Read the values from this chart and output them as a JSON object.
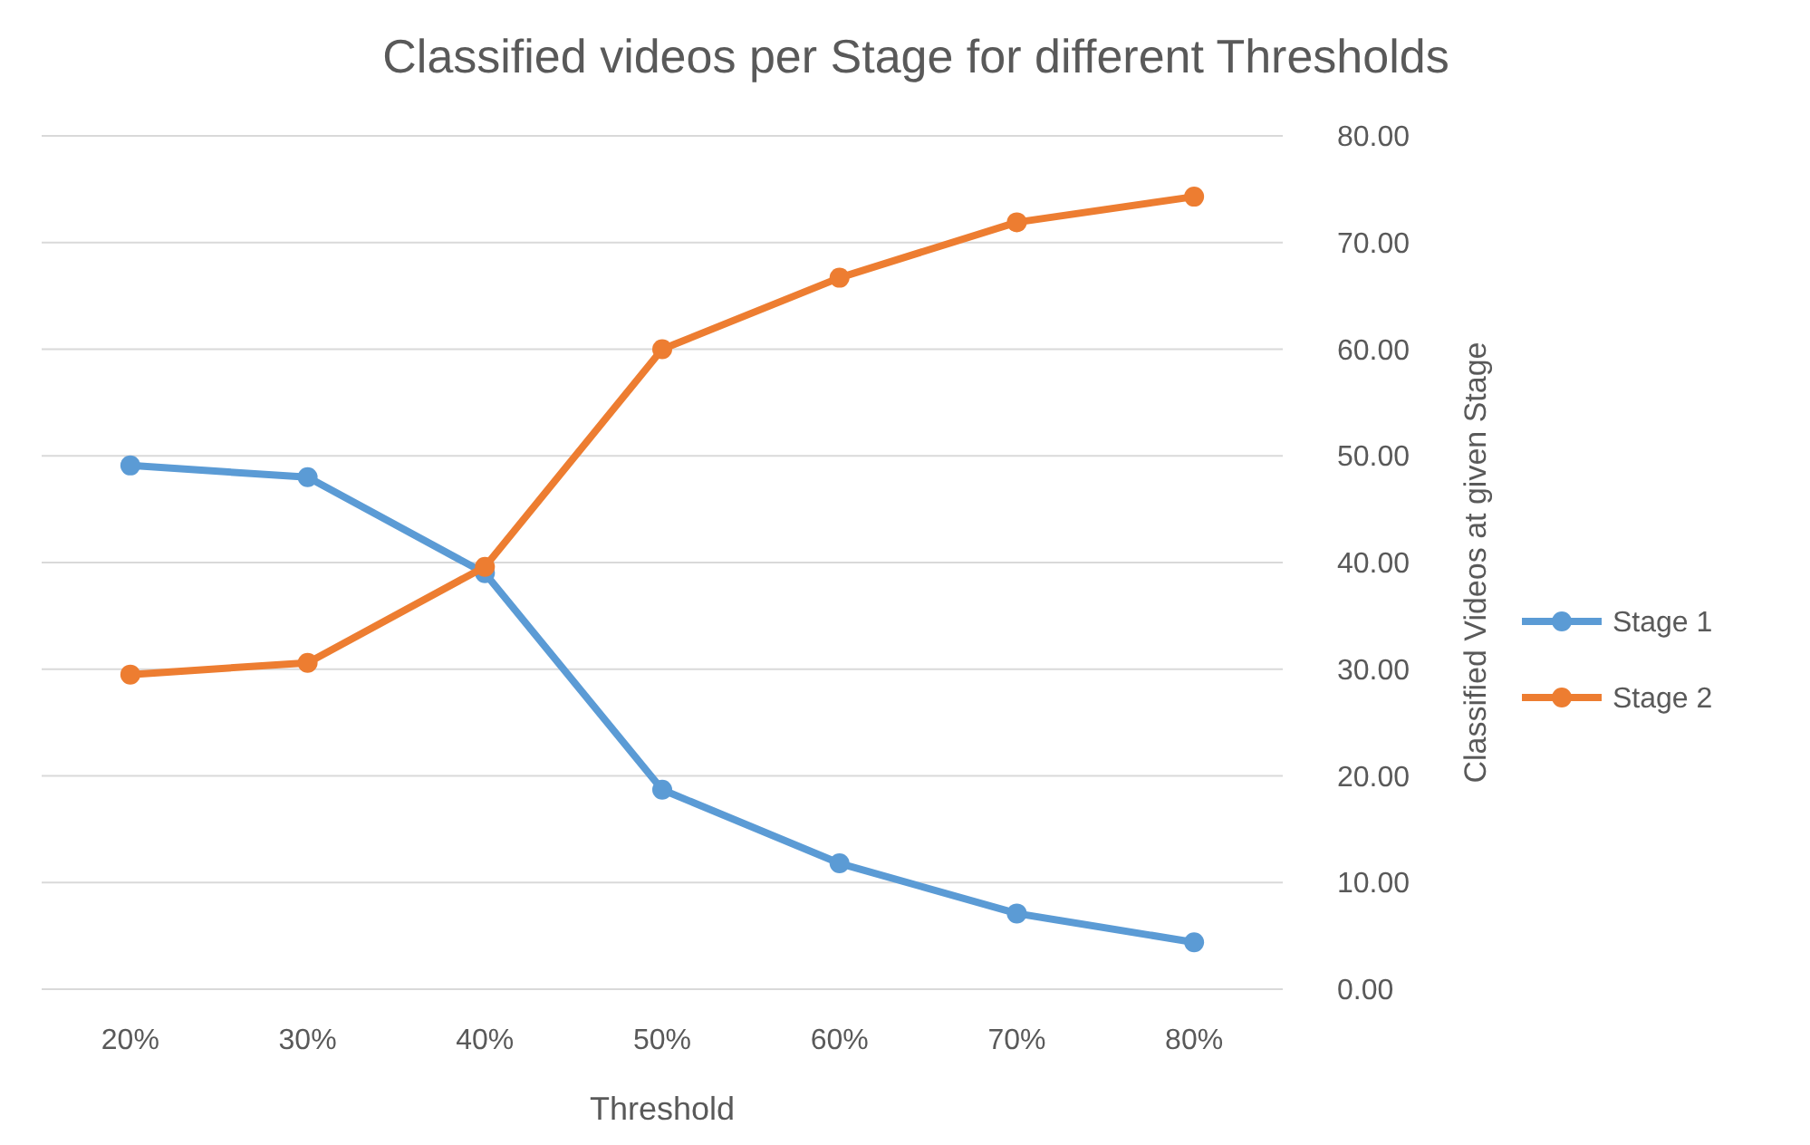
{
  "chart_data": {
    "type": "line",
    "title": "Classified videos per Stage for different Thresholds",
    "xlabel": "Threshold",
    "y2label": "Classified Videos at given Stage",
    "categories": [
      "20%",
      "30%",
      "40%",
      "50%",
      "60%",
      "70%",
      "80%"
    ],
    "series": [
      {
        "name": "Stage 1",
        "color": "#5b9bd5",
        "axis": "y2",
        "values": [
          49.1,
          48.0,
          39.0,
          18.7,
          11.8,
          7.1,
          4.4
        ]
      },
      {
        "name": "Stage 2",
        "color": "#ed7d31",
        "axis": "y2",
        "values": [
          29.5,
          30.6,
          39.6,
          60.0,
          66.7,
          71.9,
          74.3
        ]
      }
    ],
    "y2lim": [
      0,
      80
    ],
    "y2ticks": [
      {
        "value": 0,
        "label": "0.00"
      },
      {
        "value": 10,
        "label": "10.00"
      },
      {
        "value": 20,
        "label": "20.00"
      },
      {
        "value": 30,
        "label": "30.00"
      },
      {
        "value": 40,
        "label": "40.00"
      },
      {
        "value": 50,
        "label": "50.00"
      },
      {
        "value": 60,
        "label": "60.00"
      },
      {
        "value": 70,
        "label": "70.00"
      },
      {
        "value": 80,
        "label": "80.00"
      }
    ],
    "grid": "y",
    "legend": "right",
    "marker": "circle",
    "line_style": "solid"
  }
}
